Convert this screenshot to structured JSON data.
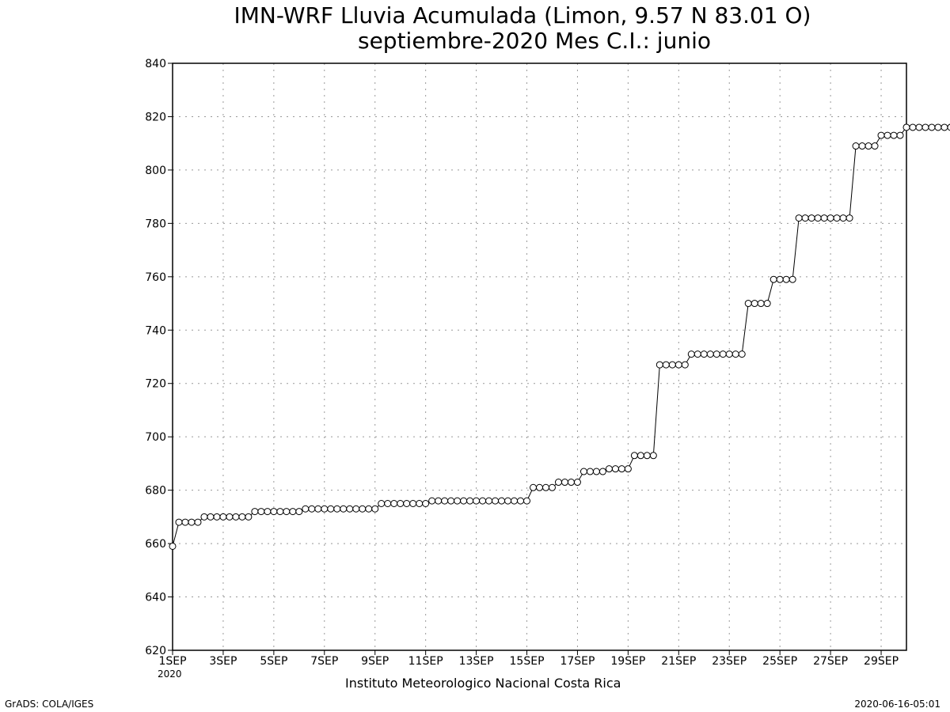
{
  "chart_data": {
    "type": "line",
    "title": "IMN-WRF  Lluvia Acumulada  (Limon, 9.57  N 83.01  O)",
    "subtitle": "septiembre-2020 Mes C.I.: junio",
    "ylim": [
      620,
      840
    ],
    "yticks": [
      620,
      640,
      660,
      680,
      700,
      720,
      740,
      760,
      780,
      800,
      820,
      840
    ],
    "xlim": [
      1,
      30
    ],
    "xticks": [
      {
        "day": 1,
        "label": "1SEP"
      },
      {
        "day": 3,
        "label": "3SEP"
      },
      {
        "day": 5,
        "label": "5SEP"
      },
      {
        "day": 7,
        "label": "7SEP"
      },
      {
        "day": 9,
        "label": "9SEP"
      },
      {
        "day": 11,
        "label": "11SEP"
      },
      {
        "day": 13,
        "label": "13SEP"
      },
      {
        "day": 15,
        "label": "15SEP"
      },
      {
        "day": 17,
        "label": "17SEP"
      },
      {
        "day": 19,
        "label": "19SEP"
      },
      {
        "day": 21,
        "label": "21SEP"
      },
      {
        "day": 23,
        "label": "23SEP"
      },
      {
        "day": 25,
        "label": "25SEP"
      },
      {
        "day": 27,
        "label": "27SEP"
      },
      {
        "day": 29,
        "label": "29SEP"
      }
    ],
    "year_label": "2020",
    "grid": true,
    "marker": "open-circle",
    "x_step_days": 0.25,
    "series": [
      {
        "values": [
          659,
          668,
          668,
          668,
          668,
          670,
          670,
          670,
          670,
          670,
          670,
          670,
          670,
          672,
          672,
          672,
          672,
          672,
          672,
          672,
          672,
          673,
          673,
          673,
          673,
          673,
          673,
          673,
          673,
          673,
          673,
          673,
          673,
          675,
          675,
          675,
          675,
          675,
          675,
          675,
          675,
          676,
          676,
          676,
          676,
          676,
          676,
          676,
          676,
          676,
          676,
          676,
          676,
          676,
          676,
          676,
          676,
          681,
          681,
          681,
          681,
          683,
          683,
          683,
          683,
          687,
          687,
          687,
          687,
          688,
          688,
          688,
          688,
          693,
          693,
          693,
          693,
          727,
          727,
          727,
          727,
          727,
          731,
          731,
          731,
          731,
          731,
          731,
          731,
          731,
          731,
          750,
          750,
          750,
          750,
          759,
          759,
          759,
          759,
          782,
          782,
          782,
          782,
          782,
          782,
          782,
          782,
          782,
          809,
          809,
          809,
          809,
          813,
          813,
          813,
          813,
          816,
          816,
          816,
          816,
          816,
          816,
          816,
          816
        ]
      }
    ]
  },
  "footer": {
    "institution": "Instituto Meteorologico Nacional Costa Rica",
    "left_credit": "GrADS: COLA/IGES",
    "right_credit": "2020-06-16-05:01"
  }
}
